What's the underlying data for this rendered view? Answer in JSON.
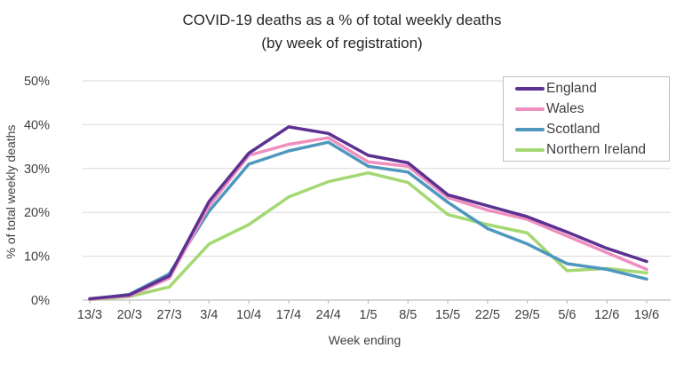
{
  "title": "COVID-19 deaths as a % of total weekly deaths",
  "subtitle": "(by week of registration)",
  "chart_data": {
    "type": "line",
    "title": "COVID-19 deaths as a % of total weekly deaths",
    "subtitle": "(by week of registration)",
    "xlabel": "Week ending",
    "ylabel": "% of total weekly deaths",
    "ylim": [
      0,
      50
    ],
    "ytick_step": 10,
    "ytick_labels": [
      "0%",
      "10%",
      "20%",
      "30%",
      "40%",
      "50%"
    ],
    "grid": true,
    "legend_position": "top-right",
    "categories": [
      "13/3",
      "20/3",
      "27/3",
      "3/4",
      "10/4",
      "17/4",
      "24/4",
      "1/5",
      "8/5",
      "15/5",
      "22/5",
      "29/5",
      "5/6",
      "12/6",
      "19/6"
    ],
    "series": [
      {
        "name": "England",
        "color": "#5b3191",
        "values": [
          0.3,
          1.2,
          5.5,
          22.5,
          33.5,
          39.5,
          38.0,
          33.0,
          31.3,
          24.0,
          21.5,
          19.0,
          15.5,
          11.8,
          8.8
        ]
      },
      {
        "name": "Wales",
        "color": "#ef8fc0",
        "values": [
          0.2,
          1.0,
          5.0,
          21.5,
          33.0,
          35.5,
          37.0,
          31.5,
          30.5,
          23.4,
          20.5,
          18.4,
          14.6,
          10.8,
          7.0
        ]
      },
      {
        "name": "Scotland",
        "color": "#4f97be",
        "values": [
          0.2,
          1.3,
          6.0,
          20.3,
          31.0,
          34.0,
          36.0,
          30.5,
          29.2,
          22.3,
          16.3,
          12.8,
          8.3,
          7.0,
          4.8
        ]
      },
      {
        "name": "Northern Ireland",
        "color": "#a4d873",
        "values": [
          0.1,
          0.8,
          3.0,
          12.8,
          17.2,
          23.5,
          27.0,
          29.0,
          26.8,
          19.5,
          17.2,
          15.3,
          6.7,
          7.2,
          6.2
        ]
      }
    ],
    "colors": {
      "gridline": "#d9d9d9",
      "axis_line": "#bfbfbf",
      "tick_text": "#3f3f3f",
      "background": "#ffffff"
    }
  }
}
